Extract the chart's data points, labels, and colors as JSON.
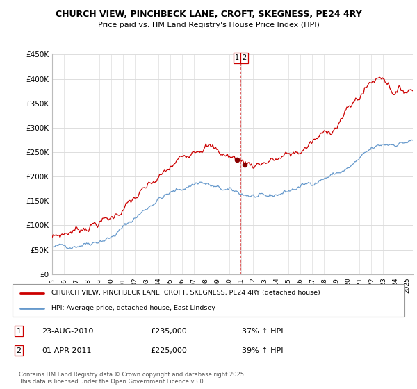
{
  "title": "CHURCH VIEW, PINCHBECK LANE, CROFT, SKEGNESS, PE24 4RY",
  "subtitle": "Price paid vs. HM Land Registry's House Price Index (HPI)",
  "ylabel_ticks": [
    "£0",
    "£50K",
    "£100K",
    "£150K",
    "£200K",
    "£250K",
    "£300K",
    "£350K",
    "£400K",
    "£450K"
  ],
  "ytick_vals": [
    0,
    50000,
    100000,
    150000,
    200000,
    250000,
    300000,
    350000,
    400000,
    450000
  ],
  "ylim": [
    0,
    450000
  ],
  "xlim_start": 1995.0,
  "xlim_end": 2025.5,
  "legend_line1": "CHURCH VIEW, PINCHBECK LANE, CROFT, SKEGNESS, PE24 4RY (detached house)",
  "legend_line2": "HPI: Average price, detached house, East Lindsey",
  "line1_color": "#cc0000",
  "line2_color": "#6699cc",
  "m1_x": 2010.645,
  "m1_y": 235000,
  "m2_x": 2011.25,
  "m2_y": 225000,
  "vline_x": 2010.9,
  "footer": "Contains HM Land Registry data © Crown copyright and database right 2025.\nThis data is licensed under the Open Government Licence v3.0.",
  "background_color": "#ffffff",
  "grid_color": "#dddddd",
  "ann1_date": "23-AUG-2010",
  "ann1_price": "£235,000",
  "ann1_hpi": "37% ↑ HPI",
  "ann2_date": "01-APR-2011",
  "ann2_price": "£225,000",
  "ann2_hpi": "39% ↑ HPI"
}
